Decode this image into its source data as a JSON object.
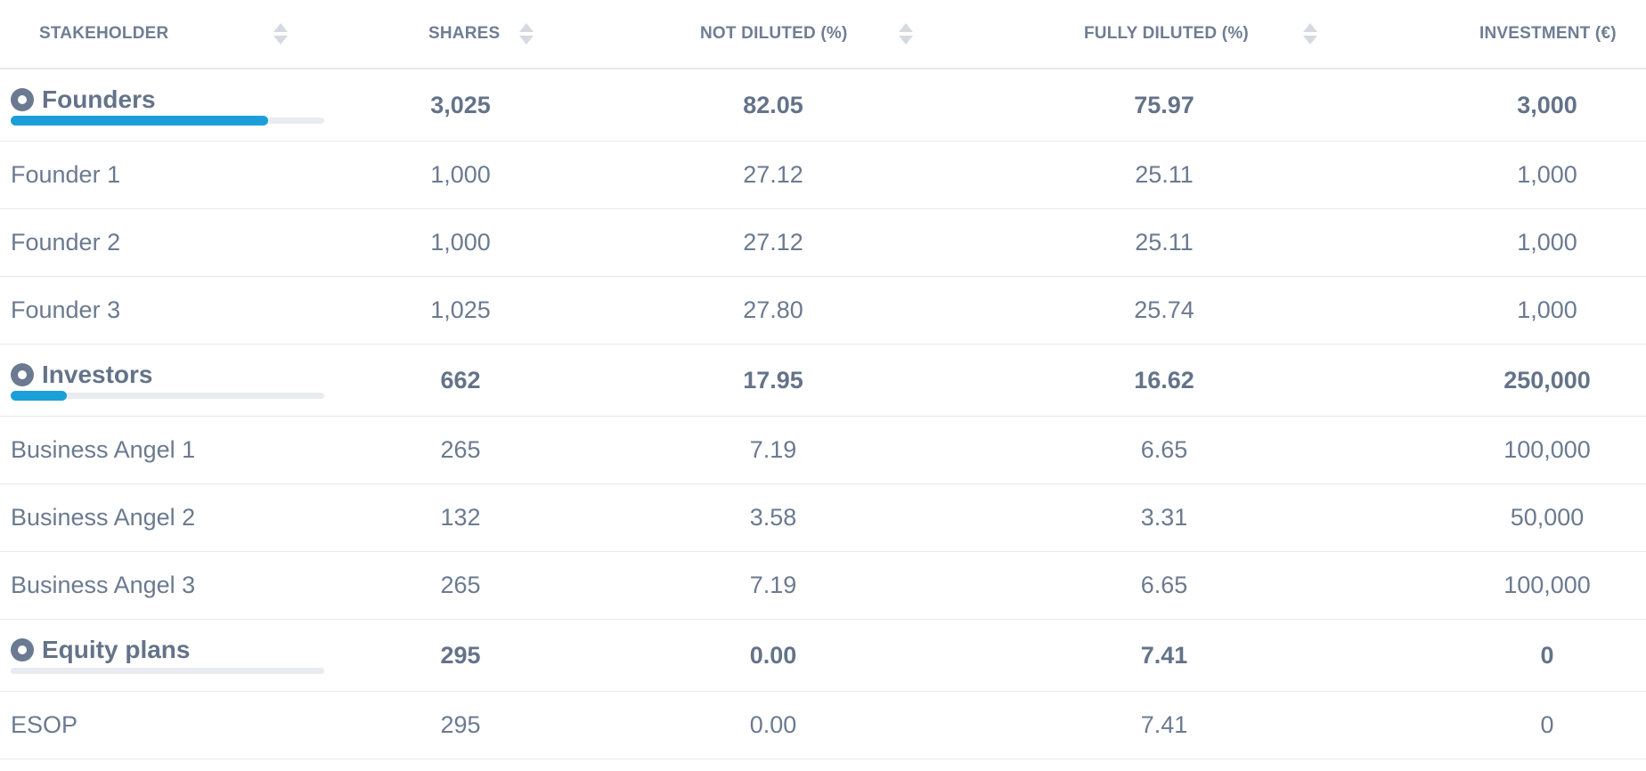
{
  "columns": {
    "stakeholder": "STAKEHOLDER",
    "shares": "SHARES",
    "not_diluted": "NOT DILUTED (%)",
    "fully_diluted": "FULLY DILUTED (%)",
    "investment": "INVESTMENT (€)"
  },
  "colors": {
    "accent": "#1a9fd9",
    "text": "#6b7a90",
    "track": "#e8ebef",
    "border": "#e6e9ee"
  },
  "rows": [
    {
      "type": "group",
      "name": "Founders",
      "shares": "3,025",
      "not_diluted": "82.05",
      "fully_diluted": "75.97",
      "investment": "3,000",
      "progress": 0.82
    },
    {
      "type": "member",
      "name": "Founder 1",
      "shares": "1,000",
      "not_diluted": "27.12",
      "fully_diluted": "25.11",
      "investment": "1,000"
    },
    {
      "type": "member",
      "name": "Founder 2",
      "shares": "1,000",
      "not_diluted": "27.12",
      "fully_diluted": "25.11",
      "investment": "1,000"
    },
    {
      "type": "member",
      "name": "Founder 3",
      "shares": "1,025",
      "not_diluted": "27.80",
      "fully_diluted": "25.74",
      "investment": "1,000"
    },
    {
      "type": "group",
      "name": "Investors",
      "shares": "662",
      "not_diluted": "17.95",
      "fully_diluted": "16.62",
      "investment": "250,000",
      "progress": 0.18
    },
    {
      "type": "member",
      "name": "Business Angel 1",
      "shares": "265",
      "not_diluted": "7.19",
      "fully_diluted": "6.65",
      "investment": "100,000"
    },
    {
      "type": "member",
      "name": "Business Angel 2",
      "shares": "132",
      "not_diluted": "3.58",
      "fully_diluted": "3.31",
      "investment": "50,000"
    },
    {
      "type": "member",
      "name": "Business Angel 3",
      "shares": "265",
      "not_diluted": "7.19",
      "fully_diluted": "6.65",
      "investment": "100,000"
    },
    {
      "type": "group",
      "name": "Equity plans",
      "shares": "295",
      "not_diluted": "0.00",
      "fully_diluted": "7.41",
      "investment": "0",
      "progress": 0
    },
    {
      "type": "member",
      "name": "ESOP",
      "shares": "295",
      "not_diluted": "0.00",
      "fully_diluted": "7.41",
      "investment": "0"
    }
  ]
}
